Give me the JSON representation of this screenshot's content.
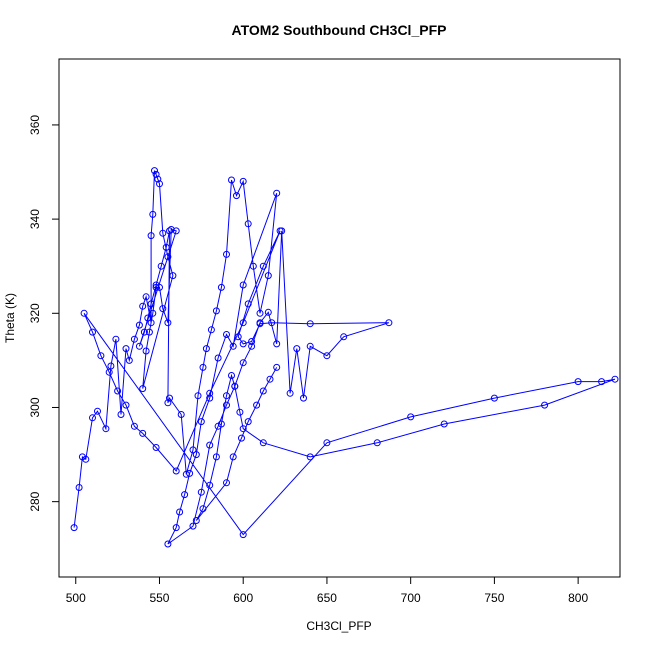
{
  "chart_data": {
    "type": "scatter",
    "title": "ATOM2 Southbound CH3Cl_PFP",
    "xlabel": "CH3Cl_PFP",
    "ylabel": "Theta (K)",
    "xlim": [
      490,
      825
    ],
    "ylim": [
      264,
      374
    ],
    "xticks": [
      500,
      550,
      600,
      650,
      700,
      750,
      800
    ],
    "yticks": [
      280,
      300,
      320,
      340,
      360
    ],
    "grid": false,
    "legend": "none",
    "style": "line-with-open-circles",
    "color": "#0000ff",
    "x": [
      499,
      502,
      504,
      506,
      510,
      513,
      518,
      521,
      524,
      527,
      530,
      532,
      535,
      538,
      540,
      542,
      545,
      545,
      546,
      547,
      548,
      549,
      550,
      552,
      555,
      558,
      540,
      542,
      544,
      546,
      548,
      550,
      552,
      555,
      557,
      560,
      538,
      541,
      543,
      545,
      548,
      551,
      554,
      556,
      555,
      556,
      563,
      566,
      570,
      573,
      576,
      578,
      581,
      584,
      587,
      590,
      593,
      596,
      600,
      603,
      606,
      610,
      615,
      620,
      600,
      594,
      590,
      585,
      580,
      575,
      572,
      568,
      565,
      562,
      560,
      555,
      570,
      575,
      580,
      585,
      590,
      595,
      600,
      605,
      610,
      615,
      620,
      623,
      628,
      632,
      636,
      640,
      650,
      660,
      687,
      640,
      617,
      610,
      605,
      600,
      597,
      603,
      612,
      622,
      600,
      580,
      560,
      548,
      540,
      535,
      530,
      525,
      520,
      515,
      510,
      505,
      600,
      650,
      700,
      750,
      800,
      814,
      822,
      780,
      720,
      680,
      640,
      612,
      600,
      598,
      595,
      593,
      590,
      587,
      584,
      580,
      576,
      572,
      590,
      594,
      599,
      603,
      608,
      612,
      616,
      620
    ],
    "y": [
      274.5,
      283,
      289.5,
      289,
      297.8,
      299.2,
      295.5,
      308.8,
      314.5,
      298.5,
      312.5,
      310,
      314.5,
      317.5,
      321.5,
      323.5,
      318,
      336.5,
      341,
      350.3,
      349.5,
      348.5,
      347.5,
      337,
      332,
      328,
      304,
      312,
      316,
      320,
      325.5,
      325.5,
      321,
      318,
      337.8,
      337.5,
      313,
      316,
      319,
      322,
      326,
      330,
      334,
      337.5,
      301,
      302,
      298.5,
      285.8,
      291,
      302.5,
      308.5,
      312.5,
      316.5,
      320.5,
      325.5,
      332.5,
      348.3,
      345,
      348,
      339,
      330,
      320,
      328,
      345.5,
      326,
      313,
      315.5,
      310.5,
      302,
      297,
      290,
      286,
      281.5,
      277.8,
      274.5,
      271,
      274.8,
      282,
      292,
      296,
      300.5,
      304.5,
      309.5,
      313,
      318,
      320.2,
      313.5,
      337.5,
      303,
      312.5,
      302,
      313,
      311,
      315,
      318,
      317.8,
      318,
      317.8,
      314,
      313.5,
      315,
      322,
      330,
      337.5,
      318,
      303,
      286.5,
      291.5,
      294.5,
      296,
      300.5,
      303.5,
      307.5,
      311,
      316,
      320,
      273,
      292.5,
      298,
      302,
      305.5,
      305.5,
      306,
      300.5,
      296.5,
      292.5,
      289.5,
      292.5,
      295.5,
      299,
      304.5,
      306.8,
      302.5,
      296.5,
      289.5,
      283.5,
      278.5,
      276,
      284,
      289.5,
      293.5,
      297,
      300.5,
      303.5,
      306,
      308.5
    ]
  }
}
